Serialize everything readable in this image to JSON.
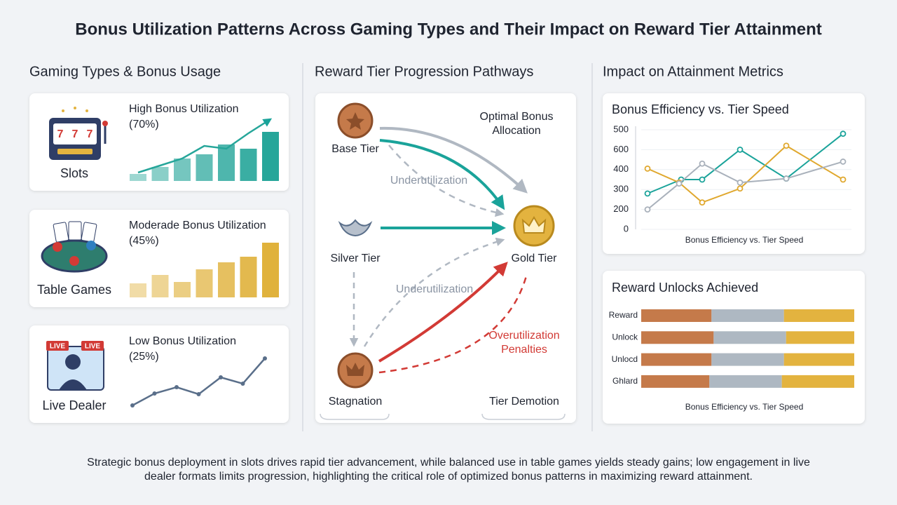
{
  "title": "Bonus Utilization Patterns Across Gaming Types and Their Impact on Reward Tier Attainment",
  "gaming_types": {
    "heading": "Gaming Types & Bonus Usage",
    "cards": [
      {
        "name": "Slots",
        "label": [
          "High Bonus Utilization",
          "(70%)"
        ],
        "color": "#26a69a",
        "bars": [
          10,
          20,
          32,
          38,
          52,
          46,
          70
        ],
        "line": [
          12,
          22,
          32,
          50,
          46,
          68,
          88
        ]
      },
      {
        "name": "Table Games",
        "label": [
          "Moderade Bonus Utilization",
          "(45%)"
        ],
        "color": "#e0b23c",
        "bars": [
          20,
          32,
          22,
          40,
          50,
          58,
          78
        ]
      },
      {
        "name": "Live Dealer",
        "label": [
          "Low Bonus Utilization",
          "(25%)"
        ],
        "color": "#5a6f8a",
        "line": [
          11,
          28,
          37,
          27,
          51,
          42,
          78
        ]
      }
    ]
  },
  "pathways": {
    "heading": "Reward Tier Progression Pathways",
    "nodes": [
      "Base Tier",
      "Silver Tier",
      "Gold Tier",
      "Stagnation"
    ],
    "labels": {
      "optimal": [
        "Optimal Bonus",
        "Allocation"
      ],
      "under_1": "Underutilization",
      "under_2": "Underutilization",
      "over": [
        "Overutilization",
        "Penalties"
      ],
      "demotion": "Tier Demotion"
    }
  },
  "impact": {
    "heading": "Impact on Attainment Metrics",
    "efficiency_chart": {
      "title": "Bonus Efficiency vs. Tier Speed",
      "caption": "Bonus Efficiency vs. Tier Speed",
      "y_labels": [
        "500",
        "600",
        "400",
        "300",
        "200",
        "0"
      ],
      "series": [
        {
          "color": "#1aa39a",
          "x": [
            3,
            19,
            29,
            47,
            69,
            96
          ],
          "y": [
            36,
            50,
            50,
            80,
            51,
            96
          ]
        },
        {
          "color": "#e0a82e",
          "x": [
            3,
            18,
            29,
            47,
            69,
            96
          ],
          "y": [
            61,
            47,
            27,
            41,
            84,
            50
          ]
        },
        {
          "color": "#a9b1bb",
          "x": [
            3,
            18,
            29,
            47,
            69,
            96
          ],
          "y": [
            20,
            46,
            66,
            47,
            51,
            68
          ]
        }
      ]
    },
    "unlocks_chart": {
      "title": "Reward Unlocks Achieved",
      "caption": "Bonus Efficiency vs. Tier Speed",
      "categories": [
        "Reward",
        "Unlock",
        "Unlocd",
        "Ghlard"
      ],
      "series": [
        {
          "color": "#c57a4a",
          "values": [
            33,
            34,
            33,
            32
          ]
        },
        {
          "color": "#aeb8c2",
          "values": [
            34,
            34,
            34,
            34
          ]
        },
        {
          "color": "#e3b33f",
          "values": [
            33,
            32,
            33,
            34
          ]
        }
      ]
    }
  },
  "footer": [
    "Strategic bonus deployment in slots drives rapid tier advancement, while balanced use in table games yields steady gains; low engagement in live",
    "dealer formats limits progression, highlighting the critical role of optimized bonus patterns in maximizing reward attainment."
  ]
}
